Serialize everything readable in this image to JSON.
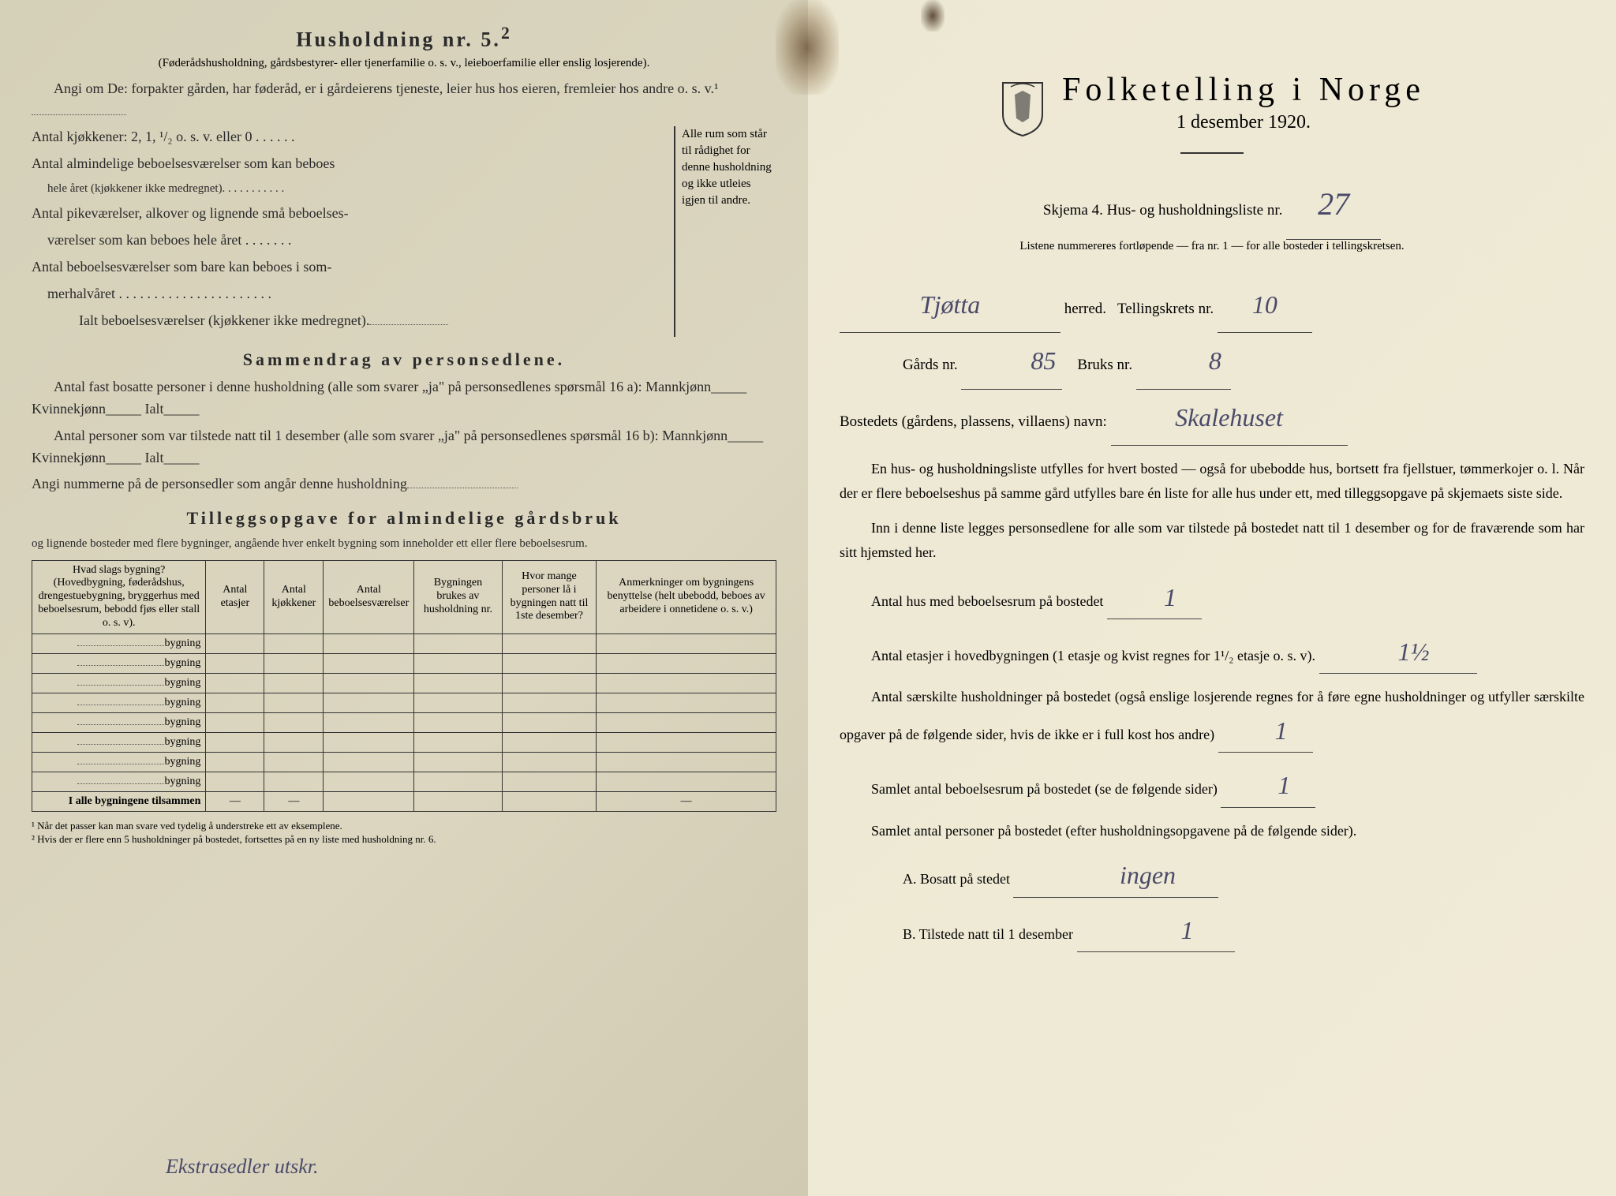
{
  "left": {
    "heading": "Husholdning nr. 5.",
    "heading_sup": "2",
    "sub1": "(Føderådshusholdning, gårdsbestyrer- eller tjenerfamilie o. s. v., leieboerfamilie eller enslig losjerende).",
    "q1": "Angi om De: forpakter gården, har føderåd, er i gårdeierens tjeneste, leier hus hos eieren, fremleier hos andre o. s. v.¹",
    "q2": "Antal kjøkkener: 2, 1, ¹/₂ o. s. v. eller 0 . . . . . .",
    "q3a": "Antal almindelige beboelsesværelser som kan beboes",
    "q3b": "hele året (kjøkkener ikke medregnet). . . . . . . . . . .",
    "q4a": "Antal pikeværelser, alkover og lignende små beboelses-",
    "q4b": "værelser som kan beboes hele året . . . . . . .",
    "q5a": "Antal beboelsesværelser som bare kan beboes i som-",
    "q5b": "merhalvåret . . . . . . . . . . . . . . . . . . . . . .",
    "q6": "Ialt beboelsesværelser (kjøkkener ikke medregnet).",
    "brace_text": "Alle rum som står til rådighet for denne husholdning og ikke utleies igjen til andre.",
    "section2_heading": "Sammendrag av personsedlene.",
    "s2_l1": "Antal fast bosatte personer i denne husholdning (alle som svarer „ja\" på personsedlenes spørsmål 16 a): Mannkjønn_____ Kvinnekjønn_____ Ialt_____",
    "s2_l2": "Antal personer som var tilstede natt til 1 desember (alle som svarer „ja\" på personsedlenes spørsmål 16 b): Mannkjønn_____ Kvinnekjønn_____ Ialt_____",
    "s2_l3": "Angi nummerne på de personsedler som angår denne husholdning",
    "section3_heading": "Tilleggsopgave for almindelige gårdsbruk",
    "s3_sub": "og lignende bosteder med flere bygninger, angående hver enkelt bygning som inneholder ett eller flere beboelsesrum.",
    "table": {
      "headers": [
        "Hvad slags bygning?\n(Hovedbygning, føderådshus, drengestuebygning, bryggerhus med beboelsesrum, bebodd fjøs eller stall o. s. v).",
        "Antal etasjer",
        "Antal kjøkkener",
        "Antal beboelsesværelser",
        "Bygningen brukes av husholdning nr.",
        "Hvor mange personer lå i bygningen natt til 1ste desember?",
        "Anmerkninger om bygningens benyttelse (helt ubebodd, beboes av arbeidere i onnetidene o. s. v.)"
      ],
      "row_label": "bygning",
      "row_count": 8,
      "total_label": "I alle bygningene tilsammen",
      "total_cells": [
        "—",
        "—",
        "",
        "",
        "",
        "—"
      ]
    },
    "footnote1": "¹ Når det passer kan man svare ved tydelig å understreke ett av eksemplene.",
    "footnote2": "² Hvis der er flere enn 5 husholdninger på bostedet, fortsettes på en ny liste med husholdning nr. 6.",
    "handwritten_note": "Ekstrasedler utskr."
  },
  "right": {
    "title": "Folketelling i Norge",
    "date": "1 desember 1920.",
    "form_label": "Skjema 4.  Hus- og husholdningsliste nr.",
    "form_nr_hw": "27",
    "listene": "Listene nummereres fortløpende — fra nr. 1 — for alle bosteder i tellingskretsen.",
    "herred_hw": "Tjøtta",
    "herred_label": "herred.",
    "krets_label": "Tellingskrets nr.",
    "krets_hw": "10",
    "gards_label": "Gårds nr.",
    "gards_hw": "85",
    "bruks_label": "Bruks nr.",
    "bruks_hw": "8",
    "bosted_label": "Bostedets (gårdens, plassens, villaens) navn:",
    "bosted_hw": "Skalehuset",
    "para1": "En hus- og husholdningsliste utfylles for hvert bosted — også for ubebodde hus, bortsett fra fjellstuer, tømmerkojer o. l.  Når der er flere beboelseshus på samme gård utfylles bare én liste for alle hus under ett, med tilleggsopgave på skjemaets siste side.",
    "para2": "Inn i denne liste legges personsedlene for alle som var tilstede på bostedet natt til 1 desember og for de fraværende som har sitt hjemsted her.",
    "q_hus": "Antal hus med beboelsesrum på bostedet",
    "q_hus_hw": "1",
    "q_etasjer": "Antal etasjer i hovedbygningen (1 etasje og kvist regnes for 1¹/₂ etasje o. s. v).",
    "q_etasjer_hw": "1½",
    "q_hushold": "Antal særskilte husholdninger på bostedet (også enslige losjerende regnes for å føre egne husholdninger og utfyller særskilte opgaver på de følgende sider, hvis de ikke er i full kost hos andre)",
    "q_hushold_hw": "1",
    "q_rum": "Samlet antal beboelsesrum på bostedet (se de følgende sider)",
    "q_rum_hw": "1",
    "q_personer": "Samlet antal personer på bostedet (efter husholdningsopgavene på de følgende sider).",
    "q_a": "A.  Bosatt på stedet",
    "q_a_hw": "ingen",
    "q_b": "B.  Tilstede natt til 1 desember",
    "q_b_hw": "1"
  },
  "colors": {
    "text": "#2a2a2a",
    "handwriting": "#4a4a6a",
    "paper_left": "#d9d4bd",
    "paper_right": "#f0ebd8",
    "border": "#333333"
  }
}
